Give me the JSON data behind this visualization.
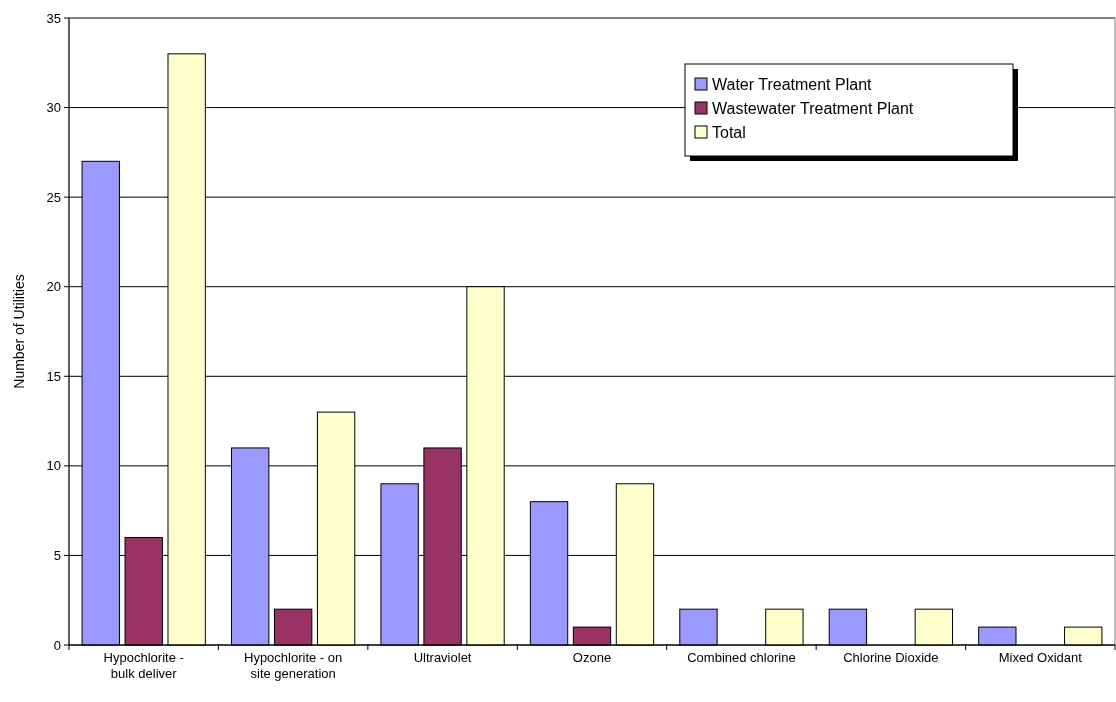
{
  "chart_data": {
    "type": "bar",
    "ylabel": "Number of Utilities",
    "categories": [
      "Hypochlorite - bulk deliver",
      "Hypochlorite - on site generation",
      "Ultraviolet",
      "Ozone",
      "Combined chlorine",
      "Chlorine Dioxide",
      "Mixed Oxidant"
    ],
    "series": [
      {
        "name": "Water Treatment Plant",
        "color": "#9999ff",
        "values": [
          27,
          11,
          9,
          8,
          2,
          2,
          1
        ]
      },
      {
        "name": "Wastewater Treatment Plant",
        "color": "#993366",
        "values": [
          6,
          2,
          11,
          1,
          null,
          null,
          null
        ]
      },
      {
        "name": "Total",
        "color": "#ffffcc",
        "values": [
          33,
          13,
          20,
          9,
          2,
          2,
          1
        ]
      }
    ],
    "ylim": [
      0,
      35
    ],
    "yticks": [
      0,
      5,
      10,
      15,
      20,
      25,
      30,
      35
    ],
    "grid": "y",
    "legend": "top right"
  }
}
